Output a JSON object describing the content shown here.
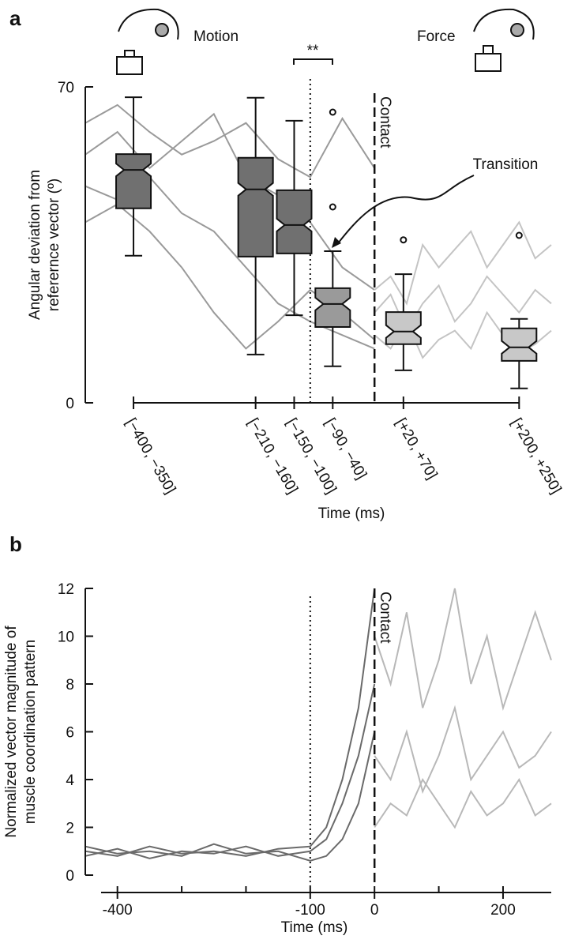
{
  "chart_data": [
    {
      "type": "box",
      "panel_label": "a",
      "y_label_lines": [
        "Angular deviation from",
        "referernce vector (º)"
      ],
      "x_label": "Time (ms)",
      "annotations": [
        "Motion",
        "Force",
        "Contact",
        "Transition",
        "**"
      ],
      "xlim": [
        -450,
        275
      ],
      "ylim": [
        0,
        70
      ],
      "yticks": [
        0,
        70
      ],
      "xticks": [
        {
          "value": -375,
          "label": "[−400, −350]"
        },
        {
          "value": -185,
          "label": "[−210, −160]"
        },
        {
          "value": -125,
          "label": "[−150, −100]"
        },
        {
          "value": -65,
          "label": "[−90, −40]"
        },
        {
          "value": 45,
          "label": "[+20, +70]"
        },
        {
          "value": 225,
          "label": "[+200, +250]"
        }
      ],
      "boxes": [
        {
          "whisker_low": 32.6,
          "q1": 43.1,
          "median": 51.6,
          "q3": 55.1,
          "whisker_high": 67.7,
          "outliers": []
        },
        {
          "whisker_low": 10.7,
          "q1": 32.4,
          "median": 47.3,
          "q3": 54.3,
          "whisker_high": 67.6,
          "outliers": []
        },
        {
          "whisker_low": 19.4,
          "q1": 33.1,
          "median": 39.4,
          "q3": 47.1,
          "whisker_high": 62.5,
          "outliers": []
        },
        {
          "whisker_low": 8.1,
          "q1": 16.8,
          "median": 21.9,
          "q3": 25.4,
          "whisker_high": 33.6,
          "outliers": [
            64.4,
            43.4
          ]
        },
        {
          "whisker_low": 7.2,
          "q1": 13.0,
          "median": 15.8,
          "q3": 20.1,
          "whisker_high": 28.5,
          "outliers": [
            36.1
          ]
        },
        {
          "whisker_low": 3.2,
          "q1": 9.3,
          "median": 12.3,
          "q3": 16.5,
          "whisker_high": 18.6,
          "outliers": [
            37.1
          ]
        }
      ],
      "box_colors": [
        "#707070",
        "#707070",
        "#707070",
        "#9a9a9a",
        "#c8c8c8",
        "#c8c8c8"
      ],
      "series": [
        {
          "color": "#9a9a9a",
          "x": [
            -450,
            -400,
            -350,
            -300,
            -250,
            -200,
            -150,
            -100,
            -50,
            0
          ],
          "values": [
            55,
            60,
            52,
            58,
            64,
            50,
            46,
            40,
            30,
            25
          ]
        },
        {
          "color": "#9a9a9a",
          "x": [
            -450,
            -400,
            -350,
            -300,
            -250,
            -200,
            -150,
            -100,
            -50,
            0
          ],
          "values": [
            48,
            45,
            50,
            42,
            38,
            30,
            22,
            18,
            15,
            12
          ]
        },
        {
          "color": "#9a9a9a",
          "x": [
            -450,
            -400,
            -350,
            -300,
            -250,
            -200,
            -150,
            -100,
            -50,
            0
          ],
          "values": [
            62,
            66,
            60,
            55,
            58,
            62,
            54,
            50,
            63,
            52
          ]
        },
        {
          "color": "#9a9a9a",
          "x": [
            -450,
            -400,
            -350,
            -300,
            -250,
            -200,
            -150,
            -100,
            -50,
            0
          ],
          "values": [
            40,
            44,
            38,
            30,
            20,
            12,
            18,
            25,
            20,
            14
          ]
        },
        {
          "color": "#c4c4c4",
          "x": [
            0,
            25,
            50,
            75,
            100,
            125,
            150,
            175,
            200,
            225,
            250,
            275
          ],
          "values": [
            25,
            28,
            22,
            35,
            30,
            34,
            38,
            30,
            35,
            40,
            32,
            35
          ]
        },
        {
          "color": "#c4c4c4",
          "x": [
            0,
            25,
            50,
            75,
            100,
            125,
            150,
            175,
            200,
            225,
            250,
            275
          ],
          "values": [
            15,
            12,
            18,
            10,
            14,
            16,
            12,
            20,
            15,
            11,
            13,
            16
          ]
        },
        {
          "color": "#c4c4c4",
          "x": [
            0,
            25,
            50,
            75,
            100,
            125,
            150,
            175,
            200,
            225,
            250,
            275
          ],
          "values": [
            20,
            24,
            16,
            22,
            26,
            18,
            22,
            28,
            24,
            20,
            25,
            22
          ]
        }
      ]
    },
    {
      "type": "line",
      "panel_label": "b",
      "y_label_lines": [
        "Normalized vector magnitude of",
        "muscle coordination pattern"
      ],
      "x_label": "Time (ms)",
      "annotations": [
        "Contact"
      ],
      "xlim": [
        -450,
        275
      ],
      "ylim": [
        0,
        12
      ],
      "xticks": [
        -400,
        -100,
        0,
        200
      ],
      "xminor_ticks": [
        -300,
        -200,
        100
      ],
      "yticks": [
        0,
        2,
        4,
        6,
        8,
        10,
        12
      ],
      "series": [
        {
          "color": "#6a6a6a",
          "x": [
            -450,
            -400,
            -350,
            -300,
            -250,
            -200,
            -150,
            -100,
            -75,
            -50,
            -25,
            0
          ],
          "values": [
            1,
            0.8,
            1.2,
            0.9,
            1,
            0.8,
            1.1,
            1.2,
            2,
            4,
            7,
            12
          ]
        },
        {
          "color": "#6a6a6a",
          "x": [
            -450,
            -400,
            -350,
            -300,
            -250,
            -200,
            -150,
            -100,
            -75,
            -50,
            -25,
            0
          ],
          "values": [
            0.8,
            1.1,
            0.7,
            1,
            0.9,
            1.2,
            0.8,
            1,
            1.5,
            3,
            5,
            8
          ]
        },
        {
          "color": "#6a6a6a",
          "x": [
            -450,
            -400,
            -350,
            -300,
            -250,
            -200,
            -150,
            -100,
            -75,
            -50,
            -25,
            0
          ],
          "values": [
            1.2,
            0.9,
            1,
            0.8,
            1.3,
            0.9,
            1,
            0.6,
            0.8,
            1.5,
            3,
            6
          ]
        },
        {
          "color": "#b8b8b8",
          "x": [
            0,
            25,
            50,
            75,
            100,
            125,
            150,
            175,
            200,
            225,
            250,
            275
          ],
          "values": [
            10,
            8,
            11,
            7,
            9,
            12,
            8,
            10,
            7,
            9,
            11,
            9
          ]
        },
        {
          "color": "#b8b8b8",
          "x": [
            0,
            25,
            50,
            75,
            100,
            125,
            150,
            175,
            200,
            225,
            250,
            275
          ],
          "values": [
            5,
            4,
            6,
            3.5,
            5,
            7,
            4,
            5,
            6,
            4.5,
            5,
            6
          ]
        },
        {
          "color": "#b8b8b8",
          "x": [
            0,
            25,
            50,
            75,
            100,
            125,
            150,
            175,
            200,
            225,
            250,
            275
          ],
          "values": [
            2,
            3,
            2.5,
            4,
            3,
            2,
            3.5,
            2.5,
            3,
            4,
            2.5,
            3
          ]
        }
      ]
    }
  ]
}
